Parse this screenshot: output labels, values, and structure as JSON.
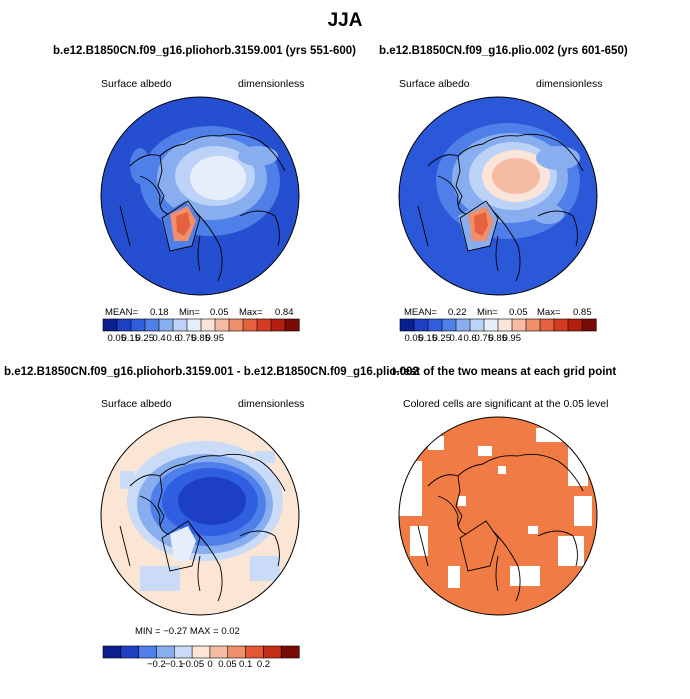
{
  "figure": {
    "title": "JJA"
  },
  "panels": [
    {
      "title": "b.e12.B1850CN.f09_g16.pliohorb.3159.001 (yrs 551-600)",
      "left_label": "Surface albedo",
      "right_label": "dimensionless",
      "stats": {
        "mean_label": "MEAN=",
        "mean": "0.18",
        "min_label": "Min=",
        "min": "0.05",
        "max_label": "Max=",
        "max": "0.84"
      },
      "colorbar": {
        "ticks": [
          "0.05",
          "0.15",
          "0.25",
          "0.4",
          "0.6",
          "0.75",
          "0.85",
          "0.95"
        ]
      }
    },
    {
      "title": "b.e12.B1850CN.f09_g16.plio.002 (yrs 601-650)",
      "left_label": "Surface albedo",
      "right_label": "dimensionless",
      "stats": {
        "mean_label": "MEAN=",
        "mean": "0.22",
        "min_label": "Min=",
        "min": "0.05",
        "max_label": "Max=",
        "max": "0.85"
      },
      "colorbar": {
        "ticks": [
          "0.05",
          "0.15",
          "0.25",
          "0.4",
          "0.6",
          "0.75",
          "0.85",
          "0.95"
        ]
      }
    },
    {
      "title": "b.e12.B1850CN.f09_g16.pliohorb.3159.001 - b.e12.B1850CN.f09_g16.plio.002",
      "left_label": "Surface albedo",
      "right_label": "dimensionless",
      "stats_line": "MIN =   −0.27  MAX =     0.02",
      "colorbar": {
        "ticks": [
          "−0.2",
          "−0.1",
          "−0.05",
          "0",
          "0.05",
          "0.1",
          "0.2"
        ]
      }
    },
    {
      "title": "t-test of the two means at each grid point",
      "subtitle": "Colored cells are significant at the 0.05 level"
    }
  ],
  "colors": {
    "abs_palette": [
      "#0a1f8f",
      "#1c3fc4",
      "#2f5fe0",
      "#4f7fe8",
      "#88aef0",
      "#bcd2f6",
      "#e6eefb",
      "#fbe5da",
      "#f5bca3",
      "#ef8f6c",
      "#e6623f",
      "#d63a20",
      "#b31e10",
      "#7a0a05"
    ],
    "diff_palette": [
      "#0a1f8f",
      "#1c3fc4",
      "#4f7fe8",
      "#88aef0",
      "#c9dbf7",
      "#fbe6d6",
      "#f5bca3",
      "#ef8f6c",
      "#e15a35",
      "#c42c15",
      "#7a0a05"
    ],
    "ttest_fill": "#f07b45",
    "land_line": "#000000"
  }
}
